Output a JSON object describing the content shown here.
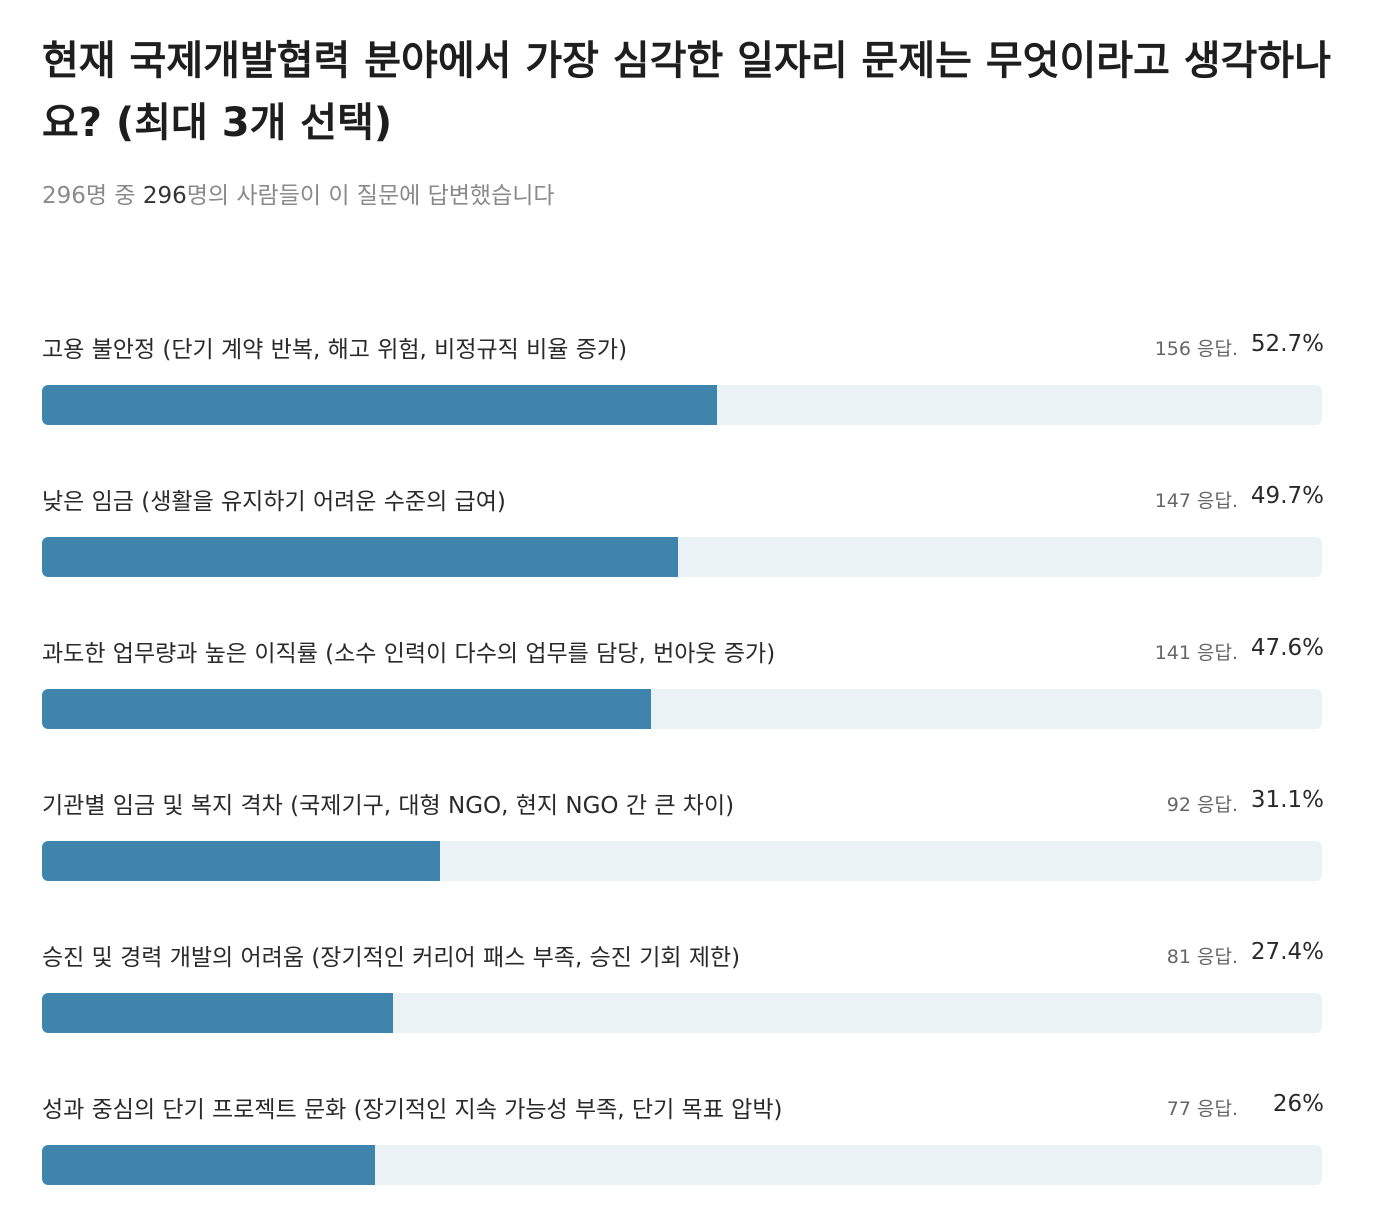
{
  "chart_data": {
    "type": "bar",
    "orientation": "horizontal",
    "title": "현재 국제개발협력 분야에서 가장 심각한 일자리 문제는 무엇이라고 생각하나요? (최대 3개 선택)",
    "subtitle_parts": [
      "296명 중 ",
      "296",
      "명의 사람들이 이 질문에 답변했습니다"
    ],
    "categories": [
      "고용 불안정 (단기 계약 반복, 해고 위험, 비정규직 비율 증가)",
      "낮은 임금 (생활을 유지하기 어려운 수준의 급여)",
      "과도한 업무량과 높은 이직률 (소수 인력이 다수의 업무를 담당, 번아웃 증가)",
      "기관별 임금 및 복지 격차 (국제기구, 대형 NGO, 현지 NGO 간 큰 차이)",
      "승진 및 경력 개발의 어려움 (장기적인 커리어 패스 부족, 승진 기회 제한)",
      "성과 중심의 단기 프로젝트 문화 (장기적인 지속 가능성 부족, 단기 목표 압박)"
    ],
    "values": [
      52.7,
      49.7,
      47.6,
      31.1,
      27.4,
      26
    ],
    "value_labels": [
      "52.7%",
      "49.7%",
      "47.6%",
      "31.1%",
      "27.4%",
      "26%"
    ],
    "responses": [
      156,
      147,
      141,
      92,
      81,
      77
    ],
    "response_labels": [
      "156 응답.",
      "147 응답.",
      "141 응답.",
      "92 응답.",
      "81 응답.",
      "77 응답."
    ],
    "color": "#3f84ad",
    "track_color": "#eaf2f6",
    "xlim": [
      0,
      100
    ]
  }
}
